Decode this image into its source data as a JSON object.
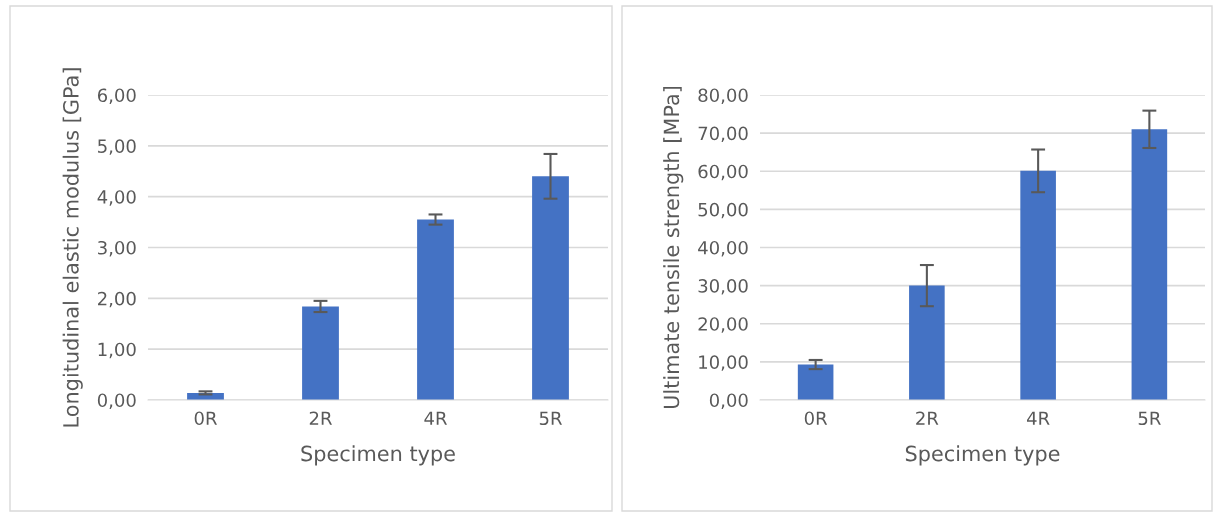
{
  "chart_data": [
    {
      "type": "bar",
      "xlabel": "Specimen type",
      "ylabel": "Longitudinal elastic modulus [GPa]",
      "categories": [
        "0R",
        "2R",
        "4R",
        "5R"
      ],
      "values": [
        0.14,
        1.84,
        3.55,
        4.4
      ],
      "errors": [
        0.03,
        0.11,
        0.1,
        0.44
      ],
      "color": "#4472c4",
      "ylim": [
        0,
        6
      ],
      "yticks": [
        {
          "value": 0,
          "label": "0,00"
        },
        {
          "value": 1,
          "label": "1,00"
        },
        {
          "value": 2,
          "label": "2,00"
        },
        {
          "value": 3,
          "label": "3,00"
        },
        {
          "value": 4,
          "label": "4,00"
        },
        {
          "value": 5,
          "label": "5,00"
        },
        {
          "value": 6,
          "label": "6,00"
        }
      ],
      "grid": "y"
    },
    {
      "type": "bar",
      "xlabel": "Specimen type",
      "ylabel": "Ultimate tensile strength [MPa]",
      "categories": [
        "0R",
        "2R",
        "4R",
        "5R"
      ],
      "values": [
        9.3,
        30.0,
        60.1,
        71.0
      ],
      "errors": [
        1.2,
        5.4,
        5.6,
        4.9
      ],
      "color": "#4472c4",
      "ylim": [
        0,
        80
      ],
      "yticks": [
        {
          "value": 0,
          "label": "0,00"
        },
        {
          "value": 10,
          "label": "10,00"
        },
        {
          "value": 20,
          "label": "20,00"
        },
        {
          "value": 30,
          "label": "30,00"
        },
        {
          "value": 40,
          "label": "40,00"
        },
        {
          "value": 50,
          "label": "50,00"
        },
        {
          "value": 60,
          "label": "60,00"
        },
        {
          "value": 70,
          "label": "70,00"
        },
        {
          "value": 80,
          "label": "80,00"
        }
      ],
      "grid": "y"
    }
  ]
}
